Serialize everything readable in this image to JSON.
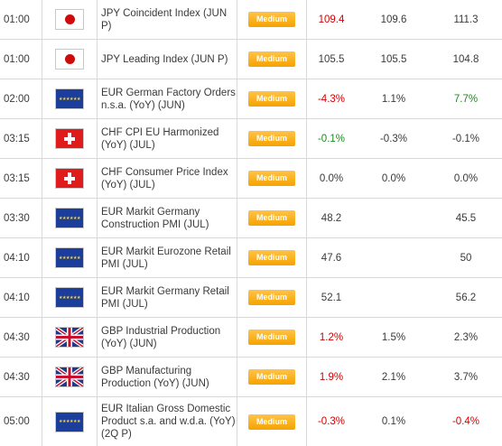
{
  "rows": [
    {
      "time": "01:00",
      "flag": "jp",
      "flag_icon": "japan-flag-icon",
      "event": "JPY Coincident Index (JUN P)",
      "importance": "Medium",
      "actual": "109.4",
      "actual_color": "neg",
      "forecast": "109.6",
      "previous": "111.3",
      "previous_color": ""
    },
    {
      "time": "01:00",
      "flag": "jp",
      "flag_icon": "japan-flag-icon",
      "event": "JPY Leading Index (JUN P)",
      "importance": "Medium",
      "actual": "105.5",
      "actual_color": "",
      "forecast": "105.5",
      "previous": "104.8",
      "previous_color": ""
    },
    {
      "time": "02:00",
      "flag": "eu",
      "flag_icon": "eu-flag-icon",
      "event": "EUR German Factory Orders n.s.a. (YoY) (JUN)",
      "importance": "Medium",
      "actual": "-4.3%",
      "actual_color": "neg",
      "forecast": "1.1%",
      "previous": "7.7%",
      "previous_color": "pos"
    },
    {
      "time": "03:15",
      "flag": "ch",
      "flag_icon": "swiss-flag-icon",
      "event": "CHF CPI EU Harmonized (YoY) (JUL)",
      "importance": "Medium",
      "actual": "-0.1%",
      "actual_color": "pos",
      "forecast": "-0.3%",
      "previous": "-0.1%",
      "previous_color": ""
    },
    {
      "time": "03:15",
      "flag": "ch",
      "flag_icon": "swiss-flag-icon",
      "event": "CHF Consumer Price Index (YoY) (JUL)",
      "importance": "Medium",
      "actual": "0.0%",
      "actual_color": "",
      "forecast": "0.0%",
      "previous": "0.0%",
      "previous_color": ""
    },
    {
      "time": "03:30",
      "flag": "eu",
      "flag_icon": "eu-flag-icon",
      "event": "EUR Markit Germany Construction PMI (JUL)",
      "importance": "Medium",
      "actual": "48.2",
      "actual_color": "",
      "forecast": "",
      "previous": "45.5",
      "previous_color": ""
    },
    {
      "time": "04:10",
      "flag": "eu",
      "flag_icon": "eu-flag-icon",
      "event": "EUR Markit Eurozone Retail PMI (JUL)",
      "importance": "Medium",
      "actual": "47.6",
      "actual_color": "",
      "forecast": "",
      "previous": "50",
      "previous_color": ""
    },
    {
      "time": "04:10",
      "flag": "eu",
      "flag_icon": "eu-flag-icon",
      "event": "EUR Markit Germany Retail PMI (JUL)",
      "importance": "Medium",
      "actual": "52.1",
      "actual_color": "",
      "forecast": "",
      "previous": "56.2",
      "previous_color": ""
    },
    {
      "time": "04:30",
      "flag": "gb",
      "flag_icon": "uk-flag-icon",
      "event": "GBP Industrial Production (YoY) (JUN)",
      "importance": "Medium",
      "actual": "1.2%",
      "actual_color": "neg",
      "forecast": "1.5%",
      "previous": "2.3%",
      "previous_color": ""
    },
    {
      "time": "04:30",
      "flag": "gb",
      "flag_icon": "uk-flag-icon",
      "event": "GBP Manufacturing Production (YoY) (JUN)",
      "importance": "Medium",
      "actual": "1.9%",
      "actual_color": "neg",
      "forecast": "2.1%",
      "previous": "3.7%",
      "previous_color": ""
    },
    {
      "time": "05:00",
      "flag": "eu",
      "flag_icon": "eu-flag-icon",
      "event": "EUR Italian Gross Domestic Product s.a. and w.d.a. (YoY) (2Q P)",
      "importance": "Medium",
      "actual": "-0.3%",
      "actual_color": "neg",
      "forecast": "0.1%",
      "previous": "-0.4%",
      "previous_color": "neg"
    }
  ]
}
